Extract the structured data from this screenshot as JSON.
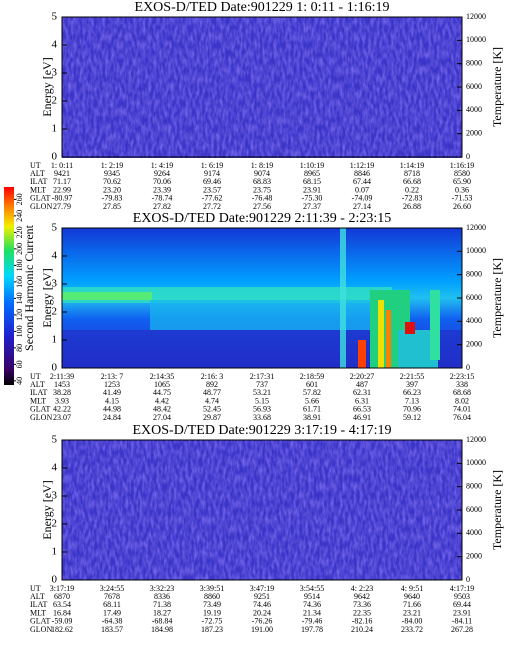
{
  "colorbar": {
    "label": "Second Harmonic Current",
    "lim": [
      35,
      275
    ],
    "ticks": [
      40,
      60,
      80,
      100,
      120,
      140,
      160,
      180,
      200,
      220,
      240,
      260
    ]
  },
  "panels": [
    {
      "title": "EXOS-D/TED  Date:901229  1: 0:11 - 1:16:19",
      "ylabel": "Energy [eV]",
      "y2label": "Temperature [K]",
      "ylim": [
        0,
        5
      ],
      "yticks": [
        0,
        1,
        2,
        3,
        4,
        5
      ],
      "y2lim": [
        0,
        12000
      ],
      "y2ticks": [
        0,
        2000,
        4000,
        6000,
        8000,
        10000,
        12000
      ],
      "ephemeris": {
        "rows": [
          {
            "label": "UT",
            "values": [
              "1: 0:11",
              "1: 2:19",
              "1: 4:19",
              "1: 6:19",
              "1: 8:19",
              "1:10:19",
              "1:12:19",
              "1:14:19",
              "1:16:19"
            ]
          },
          {
            "label": "ALT",
            "values": [
              "9421",
              "9345",
              "9264",
              "9174",
              "9074",
              "8965",
              "8846",
              "8718",
              "8580"
            ]
          },
          {
            "label": "ILAT",
            "values": [
              "71.17",
              "70.62",
              "70.06",
              "69.46",
              "68.83",
              "68.15",
              "67.44",
              "66.68",
              "65.90"
            ]
          },
          {
            "label": "MLT",
            "values": [
              "22.99",
              "23.20",
              "23.39",
              "23.57",
              "23.75",
              "23.91",
              "0.07",
              "0.22",
              "0.36"
            ]
          },
          {
            "label": "GLAT",
            "values": [
              "-80.97",
              "-79.83",
              "-78.74",
              "-77.62",
              "-76.48",
              "-75.30",
              "-74.09",
              "-72.83",
              "-71.53"
            ]
          },
          {
            "label": "GLON",
            "values": [
              "27.79",
              "27.85",
              "27.82",
              "27.72",
              "27.56",
              "27.37",
              "27.14",
              "26.88",
              "26.60"
            ]
          }
        ]
      }
    },
    {
      "title": "EXOS-D/TED  Date:901229  2:11:39 - 2:23:15",
      "ylabel": "Energy [eV]",
      "y2label": "Temperature [K]",
      "ylim": [
        0,
        5
      ],
      "yticks": [
        0,
        1,
        2,
        3,
        4,
        5
      ],
      "y2lim": [
        0,
        12000
      ],
      "y2ticks": [
        0,
        2000,
        4000,
        6000,
        8000,
        10000,
        12000
      ],
      "ephemeris": {
        "rows": [
          {
            "label": "UT",
            "values": [
              "2:11:39",
              "2:13: 7",
              "2:14:35",
              "2:16: 3",
              "2:17:31",
              "2:18:59",
              "2:20:27",
              "2:21:55",
              "2:23:15"
            ]
          },
          {
            "label": "ALT",
            "values": [
              "1453",
              "1253",
              "1065",
              "892",
              "737",
              "601",
              "487",
              "397",
              "338"
            ]
          },
          {
            "label": "ILAT",
            "values": [
              "38.28",
              "41.49",
              "44.75",
              "48.77",
              "53.21",
              "57.82",
              "62.31",
              "66.23",
              "68.68"
            ]
          },
          {
            "label": "MLT",
            "values": [
              "3.93",
              "4.15",
              "4.42",
              "4.74",
              "5.15",
              "5.66",
              "6.31",
              "7.13",
              "8.02"
            ]
          },
          {
            "label": "GLAT",
            "values": [
              "42.22",
              "44.98",
              "48.42",
              "52.45",
              "56.93",
              "61.71",
              "66.53",
              "70.96",
              "74.01"
            ]
          },
          {
            "label": "GLON",
            "values": [
              "23.07",
              "24.84",
              "27.04",
              "29.87",
              "33.68",
              "38.91",
              "46.91",
              "59.12",
              "76.04"
            ]
          }
        ]
      }
    },
    {
      "title": "EXOS-D/TED  Date:901229  3:17:19 - 4:17:19",
      "ylabel": "Energy [eV]",
      "y2label": "Temperature [K]",
      "ylim": [
        0,
        5
      ],
      "yticks": [
        0,
        1,
        2,
        3,
        4,
        5
      ],
      "y2lim": [
        0,
        12000
      ],
      "y2ticks": [
        0,
        2000,
        4000,
        6000,
        8000,
        10000,
        12000
      ],
      "ephemeris": {
        "rows": [
          {
            "label": "UT",
            "values": [
              "3:17:19",
              "3:24:55",
              "3:32:23",
              "3:39:51",
              "3:47:19",
              "3:54:55",
              "4: 2:23",
              "4: 9:51",
              "4:17:19"
            ]
          },
          {
            "label": "ALT",
            "values": [
              "6870",
              "7678",
              "8336",
              "8860",
              "9251",
              "9514",
              "9642",
              "9640",
              "9503"
            ]
          },
          {
            "label": "ILAT",
            "values": [
              "63.54",
              "68.11",
              "71.38",
              "73.49",
              "74.46",
              "74.36",
              "73.36",
              "71.66",
              "69.44"
            ]
          },
          {
            "label": "MLT",
            "values": [
              "16.84",
              "17.49",
              "18.27",
              "19.19",
              "20.24",
              "21.34",
              "22.35",
              "23.21",
              "23.91"
            ]
          },
          {
            "label": "GLAT",
            "values": [
              "-59.09",
              "-64.38",
              "-68.84",
              "-72.75",
              "-76.26",
              "-79.46",
              "-82.16",
              "-84.00",
              "-84.11"
            ]
          },
          {
            "label": "GLON",
            "values": [
              "182.62",
              "183.57",
              "184.98",
              "187.23",
              "191.00",
              "197.78",
              "210.24",
              "233.72",
              "267.28"
            ]
          }
        ]
      }
    }
  ]
}
